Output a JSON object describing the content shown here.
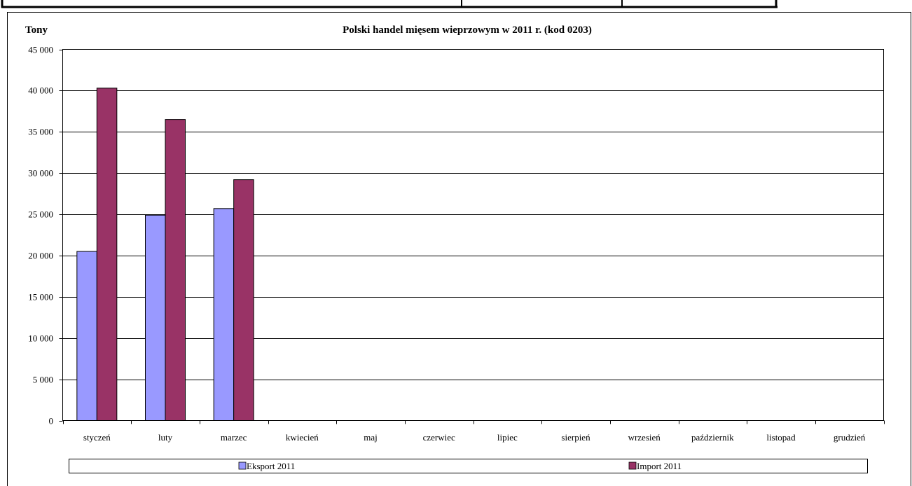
{
  "chart_data": {
    "type": "bar",
    "title": "Polski handel mięsem wieprzowym w 2011 r. (kod 0203)",
    "ylabel": "Tony",
    "xlabel": "",
    "ylim": [
      0,
      45000
    ],
    "yticks": [
      0,
      5000,
      10000,
      15000,
      20000,
      25000,
      30000,
      35000,
      40000,
      45000
    ],
    "ytick_labels": [
      "0",
      "5 000",
      "10 000",
      "15 000",
      "20 000",
      "25 000",
      "30 000",
      "35 000",
      "40 000",
      "45 000"
    ],
    "categories": [
      "styczeń",
      "luty",
      "marzec",
      "kwiecień",
      "maj",
      "czerwiec",
      "lipiec",
      "sierpień",
      "wrzesień",
      "październik",
      "listopad",
      "grudzień"
    ],
    "series": [
      {
        "name": "Eksport 2011",
        "color": "#9999ff",
        "values": [
          20500,
          24900,
          25700,
          null,
          null,
          null,
          null,
          null,
          null,
          null,
          null,
          null
        ]
      },
      {
        "name": "Import 2011",
        "color": "#993366",
        "values": [
          40300,
          36500,
          29200,
          null,
          null,
          null,
          null,
          null,
          null,
          null,
          null,
          null
        ]
      }
    ],
    "grid": true,
    "legend": "bottom"
  }
}
